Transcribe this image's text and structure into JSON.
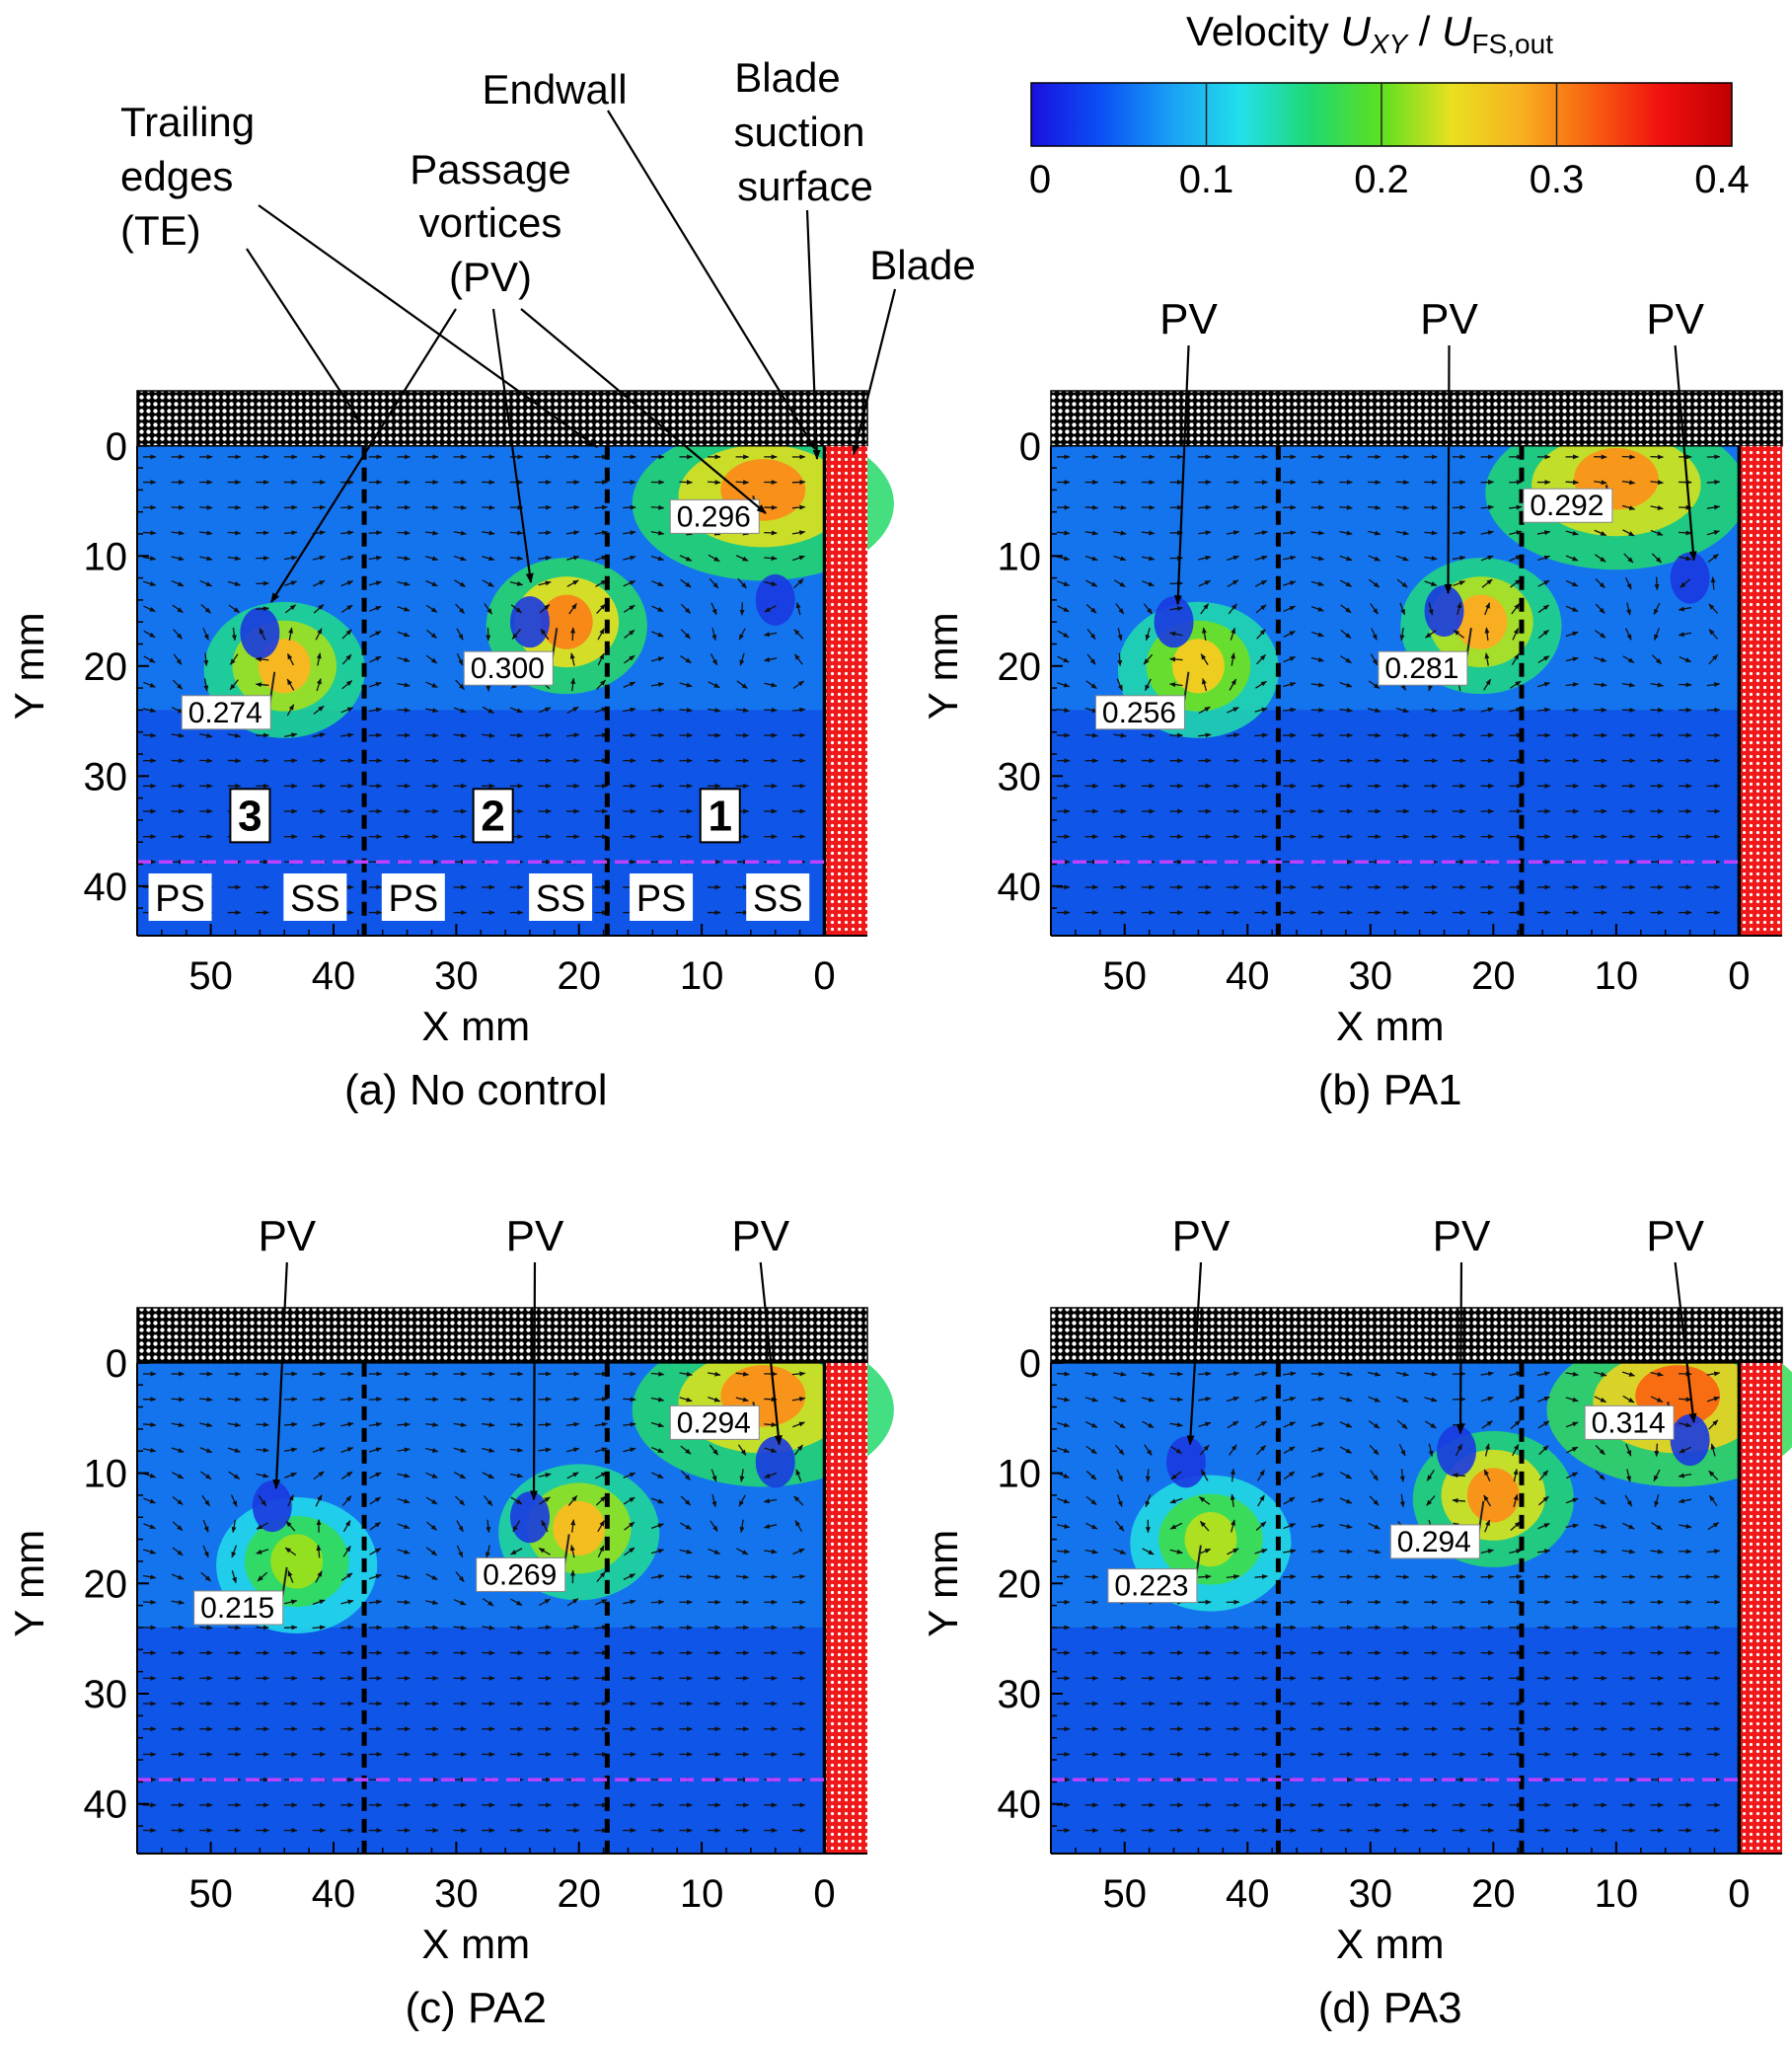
{
  "chart_data": {
    "type": "heatmap",
    "colorbar": {
      "title_prefix": "Velocity ",
      "title_sym": "U",
      "title_sub": "XY",
      "title_sep": " / ",
      "title_sym2": "U",
      "title_sub2": "FS,out",
      "ticks": [
        "0",
        "0.1",
        "0.2",
        "0.3",
        "0.4"
      ],
      "range": [
        0,
        0.4
      ],
      "stops": [
        "#1a10e0",
        "#0a50f5",
        "#1aa0f5",
        "#22e0ea",
        "#20d870",
        "#5ee020",
        "#e8e020",
        "#f8b020",
        "#f86010",
        "#f01010",
        "#c00000"
      ]
    },
    "x_ticks": [
      50,
      40,
      30,
      20,
      10,
      0
    ],
    "y_ticks": [
      0,
      10,
      20,
      30,
      40
    ],
    "xlim": [
      56,
      -3.5
    ],
    "ylim": [
      -5,
      44.5
    ],
    "xlabel": "X mm",
    "ylabel": "Y mm",
    "trailing_edges_x": [
      37.5,
      17.7
    ],
    "blade_x": 0,
    "reference_line_y": 37.8,
    "panels": [
      {
        "id": "a",
        "caption": "(a) No control",
        "pv_labels": [],
        "peaks": [
          {
            "label": "0.274",
            "x": 44,
            "y": 20
          },
          {
            "label": "0.300",
            "x": 21,
            "y": 16
          },
          {
            "label": "0.296",
            "x": 5,
            "y": 4
          }
        ],
        "vortex_centers": [
          {
            "x": 46,
            "y": 17
          },
          {
            "x": 24,
            "y": 16
          },
          {
            "x": 4,
            "y": 14
          }
        ]
      },
      {
        "id": "b",
        "caption": "(b) PA1",
        "pv_labels": [
          "PV",
          "PV",
          "PV"
        ],
        "peaks": [
          {
            "label": "0.256",
            "x": 44,
            "y": 20
          },
          {
            "label": "0.281",
            "x": 21,
            "y": 16
          },
          {
            "label": "0.292",
            "x": 10,
            "y": 3
          }
        ],
        "vortex_centers": [
          {
            "x": 46,
            "y": 16
          },
          {
            "x": 24,
            "y": 15
          },
          {
            "x": 4,
            "y": 12
          }
        ]
      },
      {
        "id": "c",
        "caption": "(c) PA2",
        "pv_labels": [
          "PV",
          "PV",
          "PV"
        ],
        "peaks": [
          {
            "label": "0.215",
            "x": 43,
            "y": 18
          },
          {
            "label": "0.269",
            "x": 20,
            "y": 15
          },
          {
            "label": "0.294",
            "x": 5,
            "y": 3
          }
        ],
        "vortex_centers": [
          {
            "x": 45,
            "y": 13
          },
          {
            "x": 24,
            "y": 14
          },
          {
            "x": 4,
            "y": 9
          }
        ]
      },
      {
        "id": "d",
        "caption": "(d) PA3",
        "pv_labels": [
          "PV",
          "PV",
          "PV"
        ],
        "peaks": [
          {
            "label": "0.223",
            "x": 43,
            "y": 16
          },
          {
            "label": "0.294",
            "x": 20,
            "y": 12
          },
          {
            "label": "0.314",
            "x": 5,
            "y": 3
          }
        ],
        "vortex_centers": [
          {
            "x": 45,
            "y": 9
          },
          {
            "x": 23,
            "y": 8
          },
          {
            "x": 4,
            "y": 7
          }
        ]
      }
    ],
    "annotations": {
      "trailing_edges": [
        "Trailing",
        "edges",
        "(TE)"
      ],
      "passage_vortices": [
        "Passage",
        "vortices",
        "(PV)"
      ],
      "endwall": "Endwall",
      "blade_suction_surface": [
        "Blade",
        "suction",
        "surface"
      ],
      "blade": "Blade"
    },
    "passage_numbers": [
      "3",
      "2",
      "1"
    ],
    "side_labels": [
      "PS",
      "SS",
      "PS",
      "SS",
      "PS",
      "SS"
    ]
  }
}
